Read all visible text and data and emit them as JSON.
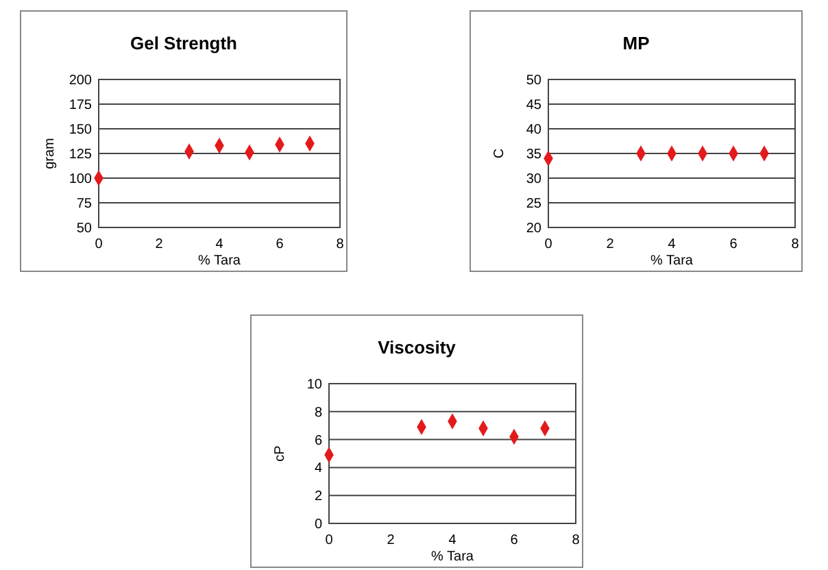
{
  "chart_data": [
    {
      "type": "scatter",
      "title": "Gel Strength",
      "xlabel": "% Tara",
      "ylabel": "gram",
      "x": [
        0,
        3,
        4,
        5,
        6,
        7
      ],
      "series": [
        {
          "color": "#e31a1c",
          "values": [
            100,
            127,
            133,
            126,
            134,
            135
          ]
        }
      ],
      "xlim": [
        0,
        8
      ],
      "xticks": [
        0,
        2,
        4,
        6,
        8
      ],
      "ylim": [
        50,
        200
      ],
      "yticks": [
        50,
        75,
        100,
        125,
        150,
        175,
        200
      ],
      "grid": "y",
      "marker": "diamond"
    },
    {
      "type": "scatter",
      "title": "MP",
      "xlabel": "% Tara",
      "ylabel": "C",
      "x": [
        0,
        3,
        4,
        5,
        6,
        7
      ],
      "series": [
        {
          "color": "#e31a1c",
          "values": [
            34,
            35,
            35,
            35,
            35,
            35
          ]
        }
      ],
      "xlim": [
        0,
        8
      ],
      "xticks": [
        0,
        2,
        4,
        6,
        8
      ],
      "ylim": [
        20,
        50
      ],
      "yticks": [
        20,
        25,
        30,
        35,
        40,
        45,
        50
      ],
      "grid": "y",
      "marker": "diamond"
    },
    {
      "type": "scatter",
      "title": "Viscosity",
      "xlabel": "% Tara",
      "ylabel": "cP",
      "x": [
        0,
        3,
        4,
        5,
        6,
        7
      ],
      "series": [
        {
          "color": "#e31a1c",
          "values": [
            4.9,
            6.9,
            7.3,
            6.8,
            6.2,
            6.8
          ]
        }
      ],
      "xlim": [
        0,
        8
      ],
      "xticks": [
        0,
        2,
        4,
        6,
        8
      ],
      "ylim": [
        0,
        10
      ],
      "yticks": [
        0,
        2,
        4,
        6,
        8,
        10
      ],
      "grid": "y",
      "marker": "diamond"
    }
  ]
}
